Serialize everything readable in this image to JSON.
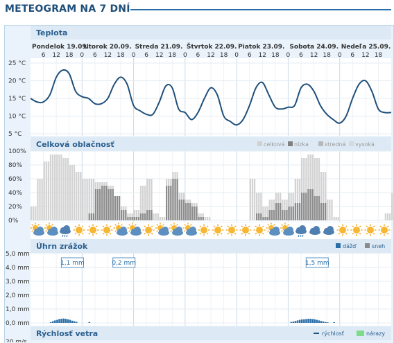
{
  "page_title": "METEOGRAM NA 7 DNÍ",
  "days": [
    "Pondelok 19.09.",
    "Utorok 20.09.",
    "Streda 21.09.",
    "Štvrtok 22.09.",
    "Piatok 23.09.",
    "Sobota 24.09.",
    "Nedeľa 25.09."
  ],
  "hours": [
    "6",
    "12",
    "18",
    "0"
  ],
  "icon_names": [
    "partly-cloudy-icon",
    "partly-cloudy-icon",
    "rain-icon",
    "sun-icon",
    "sun-icon",
    "sun-icon",
    "partly-cloudy-icon",
    "partly-cloudy-icon",
    "sun-icon",
    "partly-cloudy-icon",
    "partly-cloudy-icon",
    "partly-cloudy-icon",
    "sun-icon",
    "sun-icon",
    "sun-icon",
    "sun-icon",
    "sun-icon",
    "partly-cloudy-icon",
    "partly-cloudy-icon",
    "rain-icon",
    "cloud-icon",
    "cloud-icon",
    "sun-icon",
    "sun-icon",
    "sun-icon",
    "sun-icon"
  ],
  "chart_data": [
    {
      "type": "line",
      "title": "Teplota",
      "y_ticks": [
        "25 °C",
        "20 °C",
        "15 °C",
        "10 °C",
        "5 °C"
      ],
      "ylim": [
        5,
        25
      ],
      "x_unit": "hour from 19.09. 00:00",
      "x": [
        0,
        3,
        6,
        9,
        12,
        15,
        18,
        21,
        24,
        27,
        30,
        33,
        36,
        39,
        42,
        45,
        48,
        51,
        54,
        57,
        60,
        63,
        66,
        69,
        72,
        75,
        78,
        81,
        84,
        87,
        90,
        93,
        96,
        99,
        102,
        105,
        108,
        111,
        114,
        117,
        120,
        123,
        126,
        129,
        132,
        135,
        138,
        141,
        144,
        147,
        150,
        153,
        156,
        159,
        162,
        165,
        168
      ],
      "series": [
        {
          "values": [
            15,
            14,
            14,
            16,
            21,
            23,
            22,
            17,
            15.5,
            15,
            13.5,
            13.5,
            15,
            19,
            21,
            19,
            13,
            11.5,
            10.5,
            10.5,
            14,
            18.5,
            18,
            12,
            11,
            9,
            11,
            15,
            18,
            16,
            10,
            8.5,
            7.5,
            9,
            13,
            18,
            19.5,
            16,
            12.5,
            12,
            12.5,
            13,
            18,
            19,
            17,
            13,
            10.5,
            9,
            8,
            10,
            15,
            19,
            20,
            17,
            12,
            11,
            11
          ]
        }
      ]
    },
    {
      "type": "area",
      "title": "Celková oblačnosť",
      "y_ticks": [
        "100%",
        "80%",
        "60%",
        "40%",
        "20%",
        "0%"
      ],
      "ylim": [
        0,
        100
      ],
      "legend": [
        "celková",
        "nízka",
        "stredná",
        "vysoká"
      ],
      "legend_colors": [
        "#d0d0d0",
        "#808080",
        "#b8b8b8",
        "#d8d8d8"
      ],
      "x": [
        0,
        3,
        6,
        9,
        12,
        15,
        18,
        21,
        24,
        27,
        30,
        33,
        36,
        39,
        42,
        45,
        48,
        51,
        54,
        57,
        60,
        63,
        66,
        69,
        72,
        75,
        78,
        81,
        84,
        87,
        90,
        93,
        96,
        99,
        102,
        105,
        108,
        111,
        114,
        117,
        120,
        123,
        126,
        129,
        132,
        135,
        138,
        141,
        144,
        147,
        150,
        153,
        156,
        159,
        162,
        165,
        168
      ],
      "series": [
        {
          "name": "celková",
          "values": [
            20,
            60,
            85,
            95,
            95,
            90,
            80,
            70,
            60,
            60,
            55,
            55,
            50,
            35,
            20,
            10,
            15,
            50,
            60,
            10,
            5,
            60,
            70,
            40,
            30,
            25,
            10,
            5,
            0,
            0,
            0,
            0,
            0,
            0,
            60,
            40,
            20,
            30,
            40,
            30,
            40,
            60,
            90,
            95,
            90,
            70,
            30,
            5,
            0,
            0,
            0,
            0,
            0,
            0,
            0,
            10,
            40
          ]
        },
        {
          "name": "nízka",
          "values": [
            0,
            0,
            0,
            0,
            0,
            0,
            0,
            0,
            0,
            10,
            45,
            50,
            45,
            35,
            15,
            5,
            5,
            10,
            15,
            0,
            0,
            50,
            60,
            30,
            25,
            20,
            5,
            0,
            0,
            0,
            0,
            0,
            0,
            0,
            0,
            10,
            5,
            15,
            25,
            15,
            20,
            25,
            40,
            45,
            35,
            25,
            0,
            0,
            0,
            0,
            0,
            0,
            0,
            0,
            0,
            0,
            0
          ]
        }
      ]
    },
    {
      "type": "bar",
      "title": "Úhrn zrážok",
      "y_ticks": [
        "5,0 mm",
        "4,0 mm",
        "3,0 mm",
        "2,0 mm",
        "1,0 mm",
        "0,0 mm"
      ],
      "ylim": [
        0,
        5
      ],
      "legend": [
        "dážď",
        "sneh"
      ],
      "legend_colors": [
        "#2b6fa8",
        "#8a8a8a"
      ],
      "annotations": [
        {
          "label": "1,1 mm",
          "x": 15
        },
        {
          "label": "0,2 mm",
          "x": 39
        },
        {
          "label": "1,5 mm",
          "x": 129
        }
      ],
      "x": [
        9,
        10,
        11,
        12,
        13,
        14,
        15,
        16,
        17,
        18,
        19,
        20,
        21,
        27,
        121,
        122,
        123,
        124,
        125,
        126,
        127,
        128,
        129,
        130,
        131,
        132,
        133,
        134,
        135,
        136,
        137,
        138,
        141
      ],
      "series": [
        {
          "name": "dážď",
          "values": [
            0.05,
            0.12,
            0.18,
            0.22,
            0.28,
            0.3,
            0.32,
            0.3,
            0.26,
            0.22,
            0.16,
            0.12,
            0.08,
            0.06,
            0.06,
            0.1,
            0.14,
            0.18,
            0.22,
            0.25,
            0.26,
            0.28,
            0.3,
            0.3,
            0.28,
            0.26,
            0.22,
            0.18,
            0.14,
            0.1,
            0.06,
            0.04,
            0.05
          ]
        }
      ]
    },
    {
      "type": "line",
      "title": "Rýchlosť vetra",
      "legend": [
        "rýchlosť",
        "nárazy"
      ],
      "legend_colors": [
        "#1f4f7a",
        "#7ddc8a"
      ],
      "y_ticks": [
        "20 m/s"
      ]
    }
  ]
}
